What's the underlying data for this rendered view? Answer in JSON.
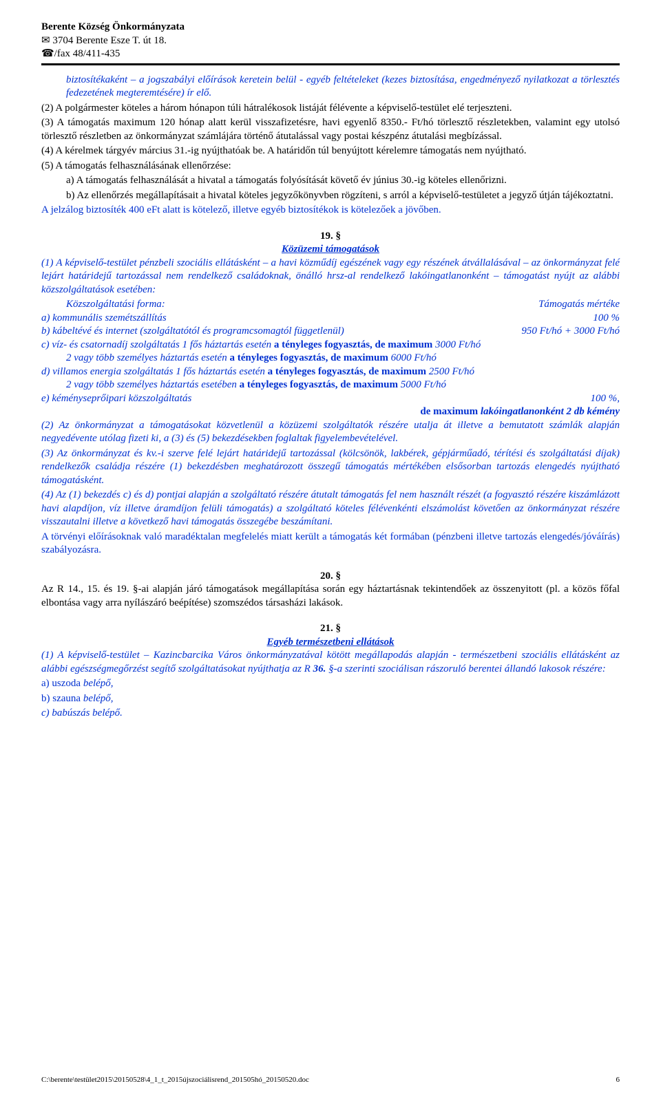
{
  "header": {
    "org": "Berente Község Önkormányzata",
    "addr": "✉ 3704 Berente Esze T. út 18.",
    "phone": "☎/fax 48/411-435"
  },
  "p1": "biztosítékaként – a jogszabályi előírások keretein belül - egyéb feltételeket (kezes biztosítása, engedményező nyilatkozat a törlesztés fedezetének megteremtésére) ír elő.",
  "p2": "(2) A polgármester köteles a három hónapon túli hátralékosok listáját félévente a képviselő-testület elé terjeszteni.",
  "p3": "(3) A támogatás maximum 120 hónap alatt kerül visszafizetésre, havi egyenlő 8350.- Ft/hó törlesztő részletekben, valamint egy utolsó törlesztő részletben az önkormányzat számlájára történő átutalással vagy postai készpénz átutalási megbízással.",
  "p4": "(4) A kérelmek tárgyév március 31.-ig nyújthatóak be. A határidőn túl benyújtott kérelemre támogatás nem nyújtható.",
  "p5": "(5) A támogatás felhasználásának ellenőrzése:",
  "p5a": "a) A támogatás felhasználását a hivatal a támogatás folyósítását követő év június 30.-ig köteles ellenőrizni.",
  "p5b": "b) Az ellenőrzés megállapításait a hivatal köteles jegyzőkönyvben rögzíteni, s arról a képviselő-testületet a jegyző útján tájékoztatni.",
  "p6": "A jelzálog biztosíték 400 eFt alatt is kötelező, illetve egyéb biztosítékok is kötelezőek a jövőben.",
  "s19": {
    "num": "19. §",
    "title": "Közüzemi támogatások"
  },
  "p19_1": "(1) A képviselő-testület pénzbeli szociális ellátásként – a havi közműdíj egészének vagy egy részének átvállalásával – az önkormányzat felé lejárt határidejű tartozással nem rendelkező családoknak, önálló hrsz-al rendelkező lakóingatlanonként – támogatást nyújt az alábbi közszolgáltatások esetében:",
  "svc_head_l": "Közszolgáltatási forma:",
  "svc_head_r": "Támogatás mértéke",
  "svc_a_l": "a) kommunális szemétszállítás",
  "svc_a_r": "100 %",
  "svc_b_l": "b) kábeltévé és internet (szolgáltatótól és programcsomagtól függetlenül)",
  "svc_b_r": "950 Ft/hó + 3000 Ft/hó",
  "svc_c1_l": "c) víz- és csatornadíj szolgáltatás   1 fős háztartás esetén",
  "svc_c1_m": " a tényleges fogyasztás, de maximum ",
  "svc_c1_r": "3000 Ft/hó",
  "svc_c2_l": "                2 vagy több személyes háztartás esetén",
  "svc_c2_m": " a tényleges fogyasztás, de maximum ",
  "svc_c2_r": "6000 Ft/hó",
  "svc_d1_l": "d) villamos energia szolgáltatás    1 fős háztartás esetén",
  "svc_d1_m": " a tényleges fogyasztás, de maximum ",
  "svc_d1_r": "2500 Ft/hó",
  "svc_d2_l": "         2 vagy több személyes háztartás esetében",
  "svc_d2_m": " a tényleges fogyasztás, de maximum ",
  "svc_d2_r": "5000 Ft/hó",
  "svc_e_l": "e) kéményseprőipari közszolgáltatás",
  "svc_e_r": "100 %,",
  "svc_e2": "de maximum lakóingatlanonként 2 db kémény",
  "p19_2": "(2) Az önkormányzat a támogatásokat közvetlenül a közüzemi szolgáltatók részére utalja át illetve a bemutatott számlák alapján negyedévente utólag fizeti ki, a (3) és (5) bekezdésekben foglaltak figyelembevételével.",
  "p19_3": "(3) Az önkormányzat és kv.-i szerve felé lejárt határidejű tartozással (kölcsönök, lakbérek, gépjárműadó, térítési és szolgáltatási díjak) rendelkezők családja részére (1) bekezdésben meghatározott összegű támogatás mértékében elsősorban tartozás elengedés nyújtható támogatásként.",
  "p19_4": "(4) Az (1) bekezdés c) és d) pontjai alapján a szolgáltató részére átutalt támogatás fel nem használt részét (a fogyasztó részére kiszámlázott havi alapdíjon, víz illetve áramdíjon felüli támogatás) a szolgáltató köteles félévenkénti elszámolást követően az önkormányzat részére visszautalni illetve a következő havi támogatás összegébe beszámítani.",
  "p19_5": "A törvényi előírásoknak való maradéktalan megfelelés miatt került a támogatás két formában (pénzbeni illetve tartozás elengedés/jóváírás) szabályozásra.",
  "s20": {
    "num": "20. §"
  },
  "p20": "Az R 14., 15. és 19. §-ai alapján járó támogatások megállapítása során egy háztartásnak tekintendőek az összenyitott (pl. a közös főfal elbontása vagy arra nyílászáró beépítése) szomszédos társasházi lakások.",
  "s21": {
    "num": "21. §",
    "title": "Egyéb természetbeni ellátások"
  },
  "p21_1a": "(1) A képviselő-testület – Kazincbarcika Város önkormányzatával kötött megállapodás alapján - természetbeni szociális ellátásként az alábbi egészségmegőrzést segítő szolgáltatásokat nyújthatja az R",
  "p21_1b": " §-a szerinti szociálisan rászoruló berentei állandó lakosok részére:",
  "p21_36": "36.",
  "p21_a": "a) uszoda belépő,",
  "p21_b": "b) szauna belépő,",
  "p21_c": "c) babúszás belépő.",
  "footer": {
    "path": "C:\\berente\\testület2015\\20150528\\4_1_t_2015újszociálisrend_201505hó_20150520.doc",
    "page": "6"
  }
}
